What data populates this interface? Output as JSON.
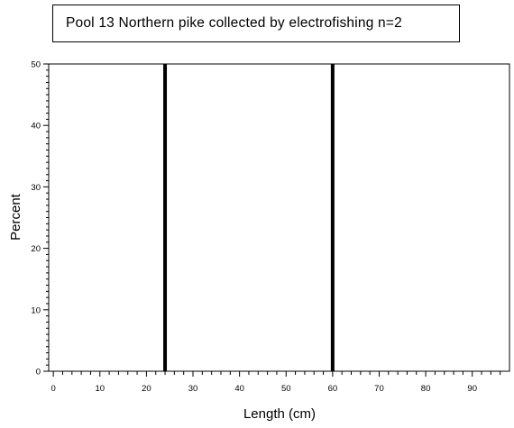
{
  "chart_data": {
    "type": "bar",
    "title": "Pool 13 Northern pike collected by electrofishing n=2",
    "xlabel": "Length (cm)",
    "ylabel": "Percent",
    "xlim": [
      -1,
      98
    ],
    "ylim": [
      0,
      50
    ],
    "x_ticks": [
      0,
      10,
      20,
      30,
      40,
      50,
      60,
      70,
      80,
      90
    ],
    "y_ticks": [
      0,
      10,
      20,
      30,
      40,
      50
    ],
    "x": [
      24,
      60
    ],
    "values": [
      50,
      50
    ],
    "bar_color": "#000000",
    "grid": false
  }
}
